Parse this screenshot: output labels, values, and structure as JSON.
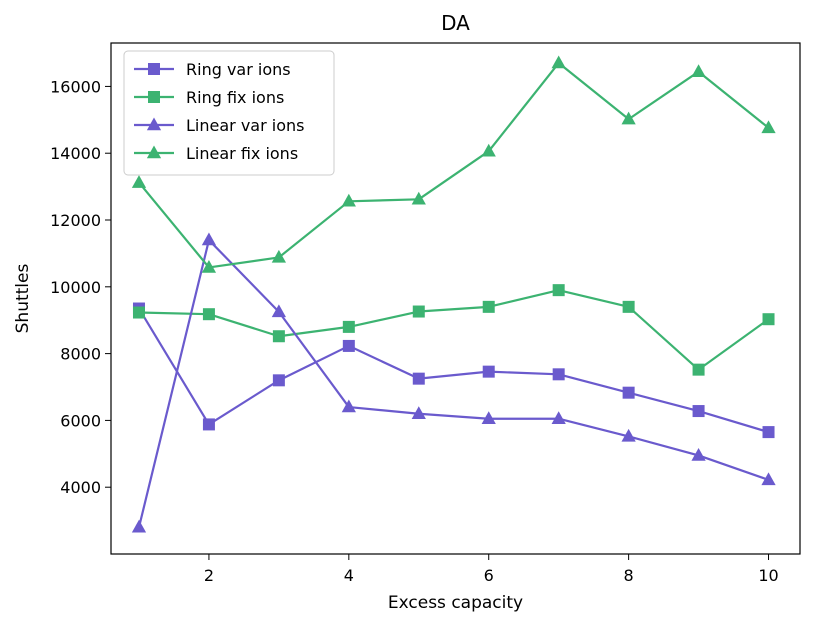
{
  "chart_data": {
    "type": "line",
    "title": "DA",
    "xlabel": "Excess capacity",
    "ylabel": "Shuttles",
    "xlim": [
      0.6,
      10.45
    ],
    "ylim": [
      2000,
      17300
    ],
    "x": [
      1,
      2,
      3,
      4,
      5,
      6,
      7,
      8,
      9,
      10
    ],
    "xticks": [
      2,
      4,
      6,
      8,
      10
    ],
    "yticks": [
      4000,
      6000,
      8000,
      10000,
      12000,
      14000,
      16000
    ],
    "legend_position": "upper-left",
    "series": [
      {
        "name": "Ring var ions",
        "color": "#6a5acd",
        "marker": "square",
        "values": [
          9350,
          5880,
          7200,
          8230,
          7250,
          7460,
          7380,
          6830,
          6280,
          5650
        ]
      },
      {
        "name": "Ring fix ions",
        "color": "#3cb371",
        "marker": "square",
        "values": [
          9230,
          9180,
          8520,
          8800,
          9260,
          9400,
          9900,
          9400,
          7520,
          9030
        ]
      },
      {
        "name": "Linear var ions",
        "color": "#6a5acd",
        "marker": "triangle",
        "values": [
          2800,
          11400,
          9250,
          6400,
          6200,
          6050,
          6050,
          5520,
          4950,
          4220
        ]
      },
      {
        "name": "Linear fix ions",
        "color": "#3cb371",
        "marker": "triangle",
        "values": [
          13120,
          10580,
          10880,
          12560,
          12620,
          14060,
          16700,
          15020,
          16440,
          14760
        ]
      }
    ]
  }
}
